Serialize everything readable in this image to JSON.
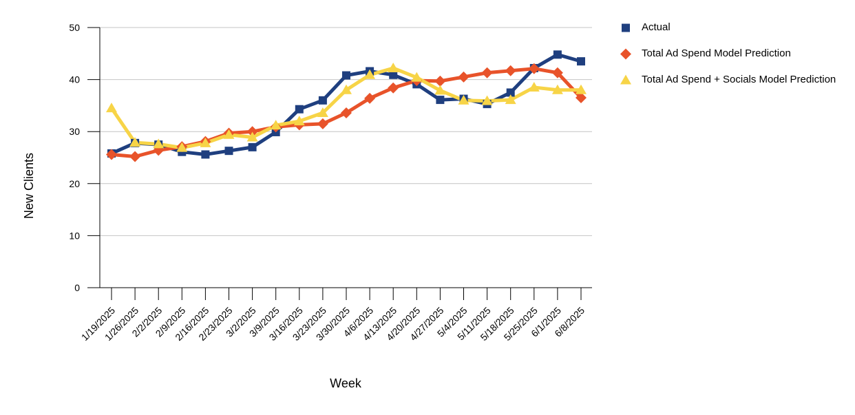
{
  "chart_data": {
    "type": "line",
    "title": "",
    "xlabel": "Week",
    "ylabel": "New Clients",
    "ylim": [
      0,
      50
    ],
    "yticks": [
      0,
      10,
      20,
      30,
      40,
      50
    ],
    "grid": true,
    "legend_position": "right",
    "categories": [
      "1/19/2025",
      "1/26/2025",
      "2/2/2025",
      "2/9/2025",
      "2/16/2025",
      "2/23/2025",
      "3/2/2025",
      "3/9/2025",
      "3/16/2025",
      "3/23/2025",
      "3/30/2025",
      "4/6/2025",
      "4/13/2025",
      "4/20/2025",
      "4/27/2025",
      "5/4/2025",
      "5/11/2025",
      "5/18/2025",
      "5/25/2025",
      "6/1/2025",
      "6/8/2025"
    ],
    "series": [
      {
        "name": "Actual",
        "color": "#1f3f7f",
        "marker": "square",
        "values": [
          25.8,
          27.8,
          27.5,
          26.1,
          25.6,
          26.3,
          27.0,
          29.9,
          34.3,
          36.0,
          40.8,
          41.6,
          40.9,
          39.1,
          36.1,
          36.3,
          35.3,
          37.5,
          42.2,
          44.8,
          43.5
        ]
      },
      {
        "name": "Total Ad Spend Model Prediction",
        "color": "#e8532a",
        "marker": "diamond",
        "values": [
          25.6,
          25.2,
          26.4,
          27.1,
          28.1,
          29.7,
          30.0,
          30.9,
          31.3,
          31.5,
          33.6,
          36.4,
          38.4,
          39.8,
          39.7,
          40.5,
          41.3,
          41.7,
          42.1,
          41.3,
          36.5
        ]
      },
      {
        "name": "Total Ad Spend + Socials Model Prediction",
        "color": "#f7d447",
        "marker": "triangle",
        "values": [
          34.5,
          27.9,
          27.6,
          26.9,
          27.8,
          29.4,
          28.9,
          31.2,
          32.0,
          33.6,
          38.0,
          40.9,
          42.2,
          40.4,
          37.9,
          36.0,
          35.9,
          36.1,
          38.5,
          38.0,
          38.0
        ]
      }
    ]
  }
}
